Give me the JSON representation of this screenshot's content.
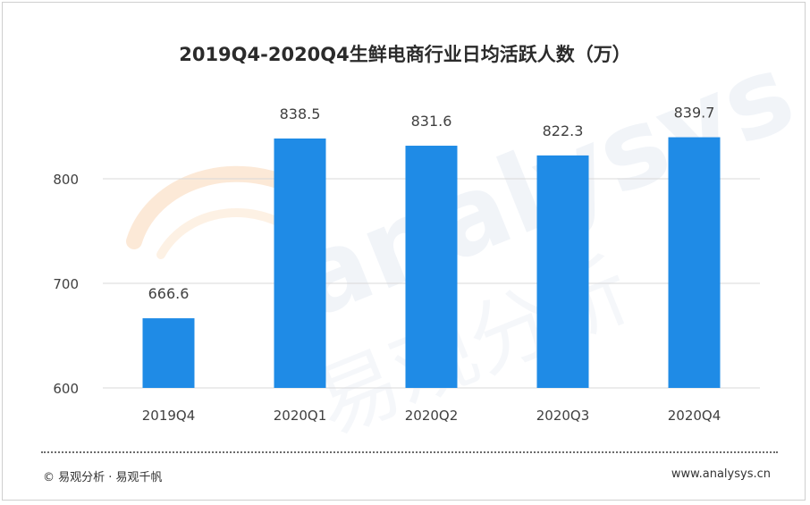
{
  "chart_data": {
    "type": "bar",
    "title": "2019Q4-2020Q4生鲜电商行业日均活跃人数（万）",
    "categories": [
      "2019Q4",
      "2020Q1",
      "2020Q2",
      "2020Q3",
      "2020Q4"
    ],
    "values": [
      666.6,
      838.5,
      831.6,
      822.3,
      839.7
    ],
    "value_labels": [
      "666.6",
      "838.5",
      "831.6",
      "822.3",
      "839.7"
    ],
    "yticks": [
      "600",
      "700",
      "800"
    ],
    "ylim": [
      600,
      900
    ],
    "grid": true,
    "bar_color": "#1f8be6",
    "grid_color": "#d9d9d9",
    "text_color": "#404040"
  },
  "footer": {
    "source": "© 易观分析 · 易观千帆",
    "website": "www.analysys.cn"
  },
  "watermark": {
    "latin": "analysys",
    "chinese": "易观分析",
    "color": "#e9eef5"
  }
}
